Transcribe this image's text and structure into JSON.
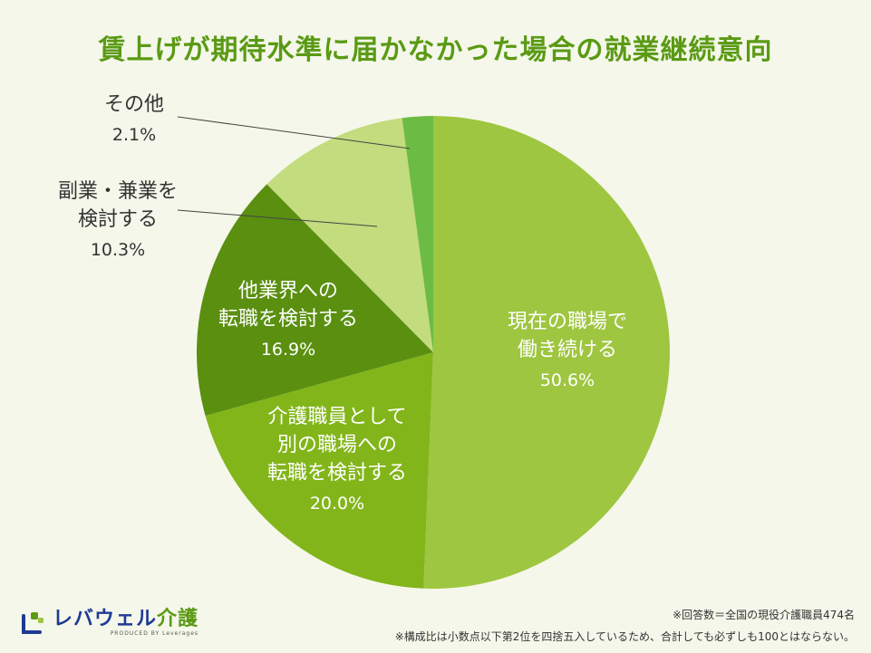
{
  "title": "賃上げが期待水準に届かなかった場合の就業継続意向",
  "chart_data": {
    "type": "pie",
    "title": "賃上げが期待水準に届かなかった場合の就業継続意向",
    "slices": [
      {
        "name": "現在の職場で働き続ける",
        "lines": [
          "現在の職場で",
          "働き続ける"
        ],
        "value": 50.6,
        "label": "50.6%",
        "color": "#9ec640"
      },
      {
        "name": "介護職員として別の職場への転職を検討する",
        "lines": [
          "介護職員として",
          "別の職場への",
          "転職を検討する"
        ],
        "value": 20.0,
        "label": "20.0%",
        "color": "#82b51a"
      },
      {
        "name": "他業界への転職を検討する",
        "lines": [
          "他業界への",
          "転職を検討する"
        ],
        "value": 16.9,
        "label": "16.9%",
        "color": "#5a8f10"
      },
      {
        "name": "副業・兼業を検討する",
        "lines": [
          "副業・兼業を",
          "検討する"
        ],
        "value": 10.3,
        "label": "10.3%",
        "color": "#c2dc7e"
      },
      {
        "name": "その他",
        "lines": [
          "その他"
        ],
        "value": 2.1,
        "label": "2.1%",
        "color": "#6cbb44"
      }
    ]
  },
  "logo": {
    "name": "レバウェル",
    "accent": "介護",
    "sub": "PRODUCED BY Leverages",
    "colors": {
      "brand": "#1f3a93",
      "accent": "#5a9a14"
    }
  },
  "notes": {
    "line1": "※回答数＝全国の現役介護職員474名",
    "line2": "※構成比は小数点以下第2位を四捨五入しているため、合計しても必ずしも100とはならない。"
  }
}
